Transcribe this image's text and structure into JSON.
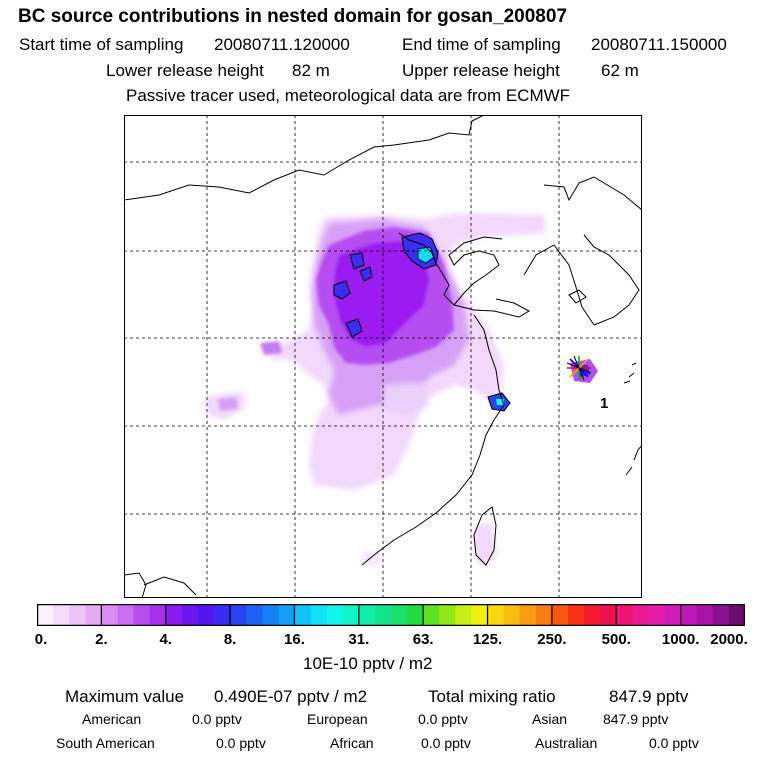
{
  "header": {
    "title": "BC  source contributions in nested domain for gosan_200807",
    "start_label": "Start time of sampling",
    "start_value": "20080711.120000",
    "end_label": "End time of sampling",
    "end_value": "20080711.150000",
    "lower_label": "Lower release height",
    "lower_value": "82 m",
    "upper_label": "Upper release height",
    "upper_value": "62 m",
    "note": "Passive tracer used, meteorological data are from ECMWF"
  },
  "map": {
    "marker_label": "1",
    "colors": {
      "land_line": "#000000",
      "grid": "#000000",
      "plume_light": "#f2d6fb",
      "plume_mid": "#c880f4",
      "plume_dark": "#9a1cf0",
      "core": "#3a2cf0",
      "hot": "#14f0e8"
    }
  },
  "colorbar": {
    "ticks": [
      "0.",
      "2.",
      "4.",
      "8.",
      "16.",
      "31.",
      "63.",
      "125.",
      "250.",
      "500.",
      "1000.",
      "2000."
    ],
    "units": "10E-10 pptv / m2",
    "segment_colors": [
      "#fbf0fd",
      "#f5dcfa",
      "#edc4f8",
      "#e4aaf6",
      "#d98cf4",
      "#cb6ef2",
      "#b94ef0",
      "#a531ef",
      "#8a1cf0",
      "#6e14ef",
      "#5316ef",
      "#3a2cf0",
      "#2a44f2",
      "#1e60f4",
      "#1680f6",
      "#12a0f8",
      "#10c4fa",
      "#10e0f8",
      "#10f4ec",
      "#10f4cc",
      "#10ecac",
      "#12e48c",
      "#18e068",
      "#20dc40",
      "#5ce020",
      "#90e818",
      "#c4f014",
      "#f0f010",
      "#f8d810",
      "#f8bc10",
      "#f89c10",
      "#f87c10",
      "#f85810",
      "#f83018",
      "#f41830",
      "#f01050",
      "#f01474",
      "#ec1894",
      "#e41cac",
      "#d41cbc",
      "#c018b8",
      "#a814a8",
      "#8c1090",
      "#6c0c70"
    ]
  },
  "summary": {
    "max_label": "Maximum value",
    "max_value": "0.490E-07 pptv / m2",
    "total_label": "Total mixing ratio",
    "total_value": "847.9 pptv",
    "american_label": "American",
    "american_value": "0.0 pptv",
    "european_label": "European",
    "european_value": "0.0 pptv",
    "asian_label": "Asian",
    "asian_value": "847.9 pptv",
    "south_american_label": "South American",
    "south_american_value": "0.0 pptv",
    "african_label": "African",
    "african_value": "0.0 pptv",
    "australian_label": "Australian",
    "australian_value": "0.0 pptv"
  }
}
